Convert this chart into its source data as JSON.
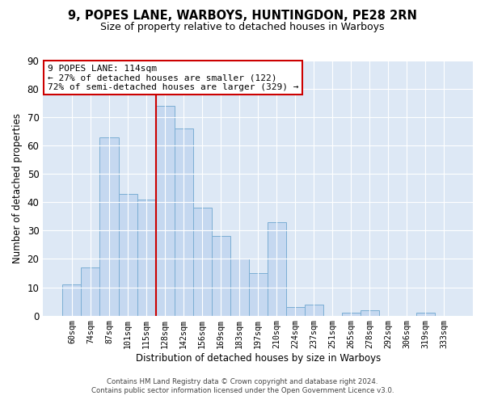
{
  "title1": "9, POPES LANE, WARBOYS, HUNTINGDON, PE28 2RN",
  "title2": "Size of property relative to detached houses in Warboys",
  "xlabel": "Distribution of detached houses by size in Warboys",
  "ylabel": "Number of detached properties",
  "bar_labels": [
    "60sqm",
    "74sqm",
    "87sqm",
    "101sqm",
    "115sqm",
    "128sqm",
    "142sqm",
    "156sqm",
    "169sqm",
    "183sqm",
    "197sqm",
    "210sqm",
    "224sqm",
    "237sqm",
    "251sqm",
    "265sqm",
    "278sqm",
    "292sqm",
    "306sqm",
    "319sqm",
    "333sqm"
  ],
  "bar_values": [
    11,
    17,
    63,
    43,
    41,
    74,
    66,
    38,
    28,
    20,
    15,
    33,
    3,
    4,
    0,
    1,
    2,
    0,
    0,
    1,
    0
  ],
  "bar_color": "#c5d8f0",
  "bar_edge_color": "#7baed4",
  "vline_color": "#cc0000",
  "vline_index": 4,
  "ylim": [
    0,
    90
  ],
  "yticks": [
    0,
    10,
    20,
    30,
    40,
    50,
    60,
    70,
    80,
    90
  ],
  "annotation_title": "9 POPES LANE: 114sqm",
  "annotation_line1": "← 27% of detached houses are smaller (122)",
  "annotation_line2": "72% of semi-detached houses are larger (329) →",
  "annotation_box_color": "#ffffff",
  "annotation_box_edge": "#cc0000",
  "footer1": "Contains HM Land Registry data © Crown copyright and database right 2024.",
  "footer2": "Contains public sector information licensed under the Open Government Licence v3.0.",
  "bg_color": "#ffffff",
  "plot_bg_color": "#dde8f5",
  "grid_color": "#ffffff"
}
